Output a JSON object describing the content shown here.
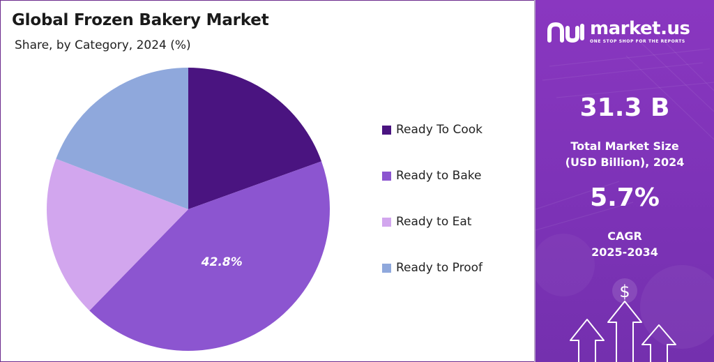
{
  "header": {
    "title": "Global Frozen Bakery Market",
    "subtitle": "Share, by Category, 2024 (%)"
  },
  "chart_data": {
    "type": "pie",
    "title": "Global Frozen Bakery Market",
    "subtitle": "Share, by Category, 2024 (%)",
    "categories": [
      "Ready To Cook",
      "Ready to Bake",
      "Ready to Eat",
      "Ready to Proof"
    ],
    "values": [
      19.5,
      42.8,
      18.5,
      19.2
    ],
    "labels": [
      "",
      "42.8%",
      "",
      ""
    ],
    "colors": [
      "#4a1480",
      "#8c55d0",
      "#d2a6ee",
      "#8fa8dc"
    ],
    "legend": {
      "position": "right",
      "items": [
        "Ready To Cook",
        "Ready to Bake",
        "Ready to Eat",
        "Ready to Proof"
      ]
    }
  },
  "side_panel": {
    "brand": {
      "name": "market.us",
      "tagline": "ONE STOP SHOP FOR THE REPORTS"
    },
    "market_size": {
      "value": "31.3 B",
      "label_line1": "Total Market Size",
      "label_line2": "(USD Billion), 2024"
    },
    "cagr": {
      "value": "5.7%",
      "label_line1": "CAGR",
      "label_line2": "2025-2034"
    },
    "icons": [
      "dollar-icon",
      "arrow-up-icon"
    ]
  }
}
